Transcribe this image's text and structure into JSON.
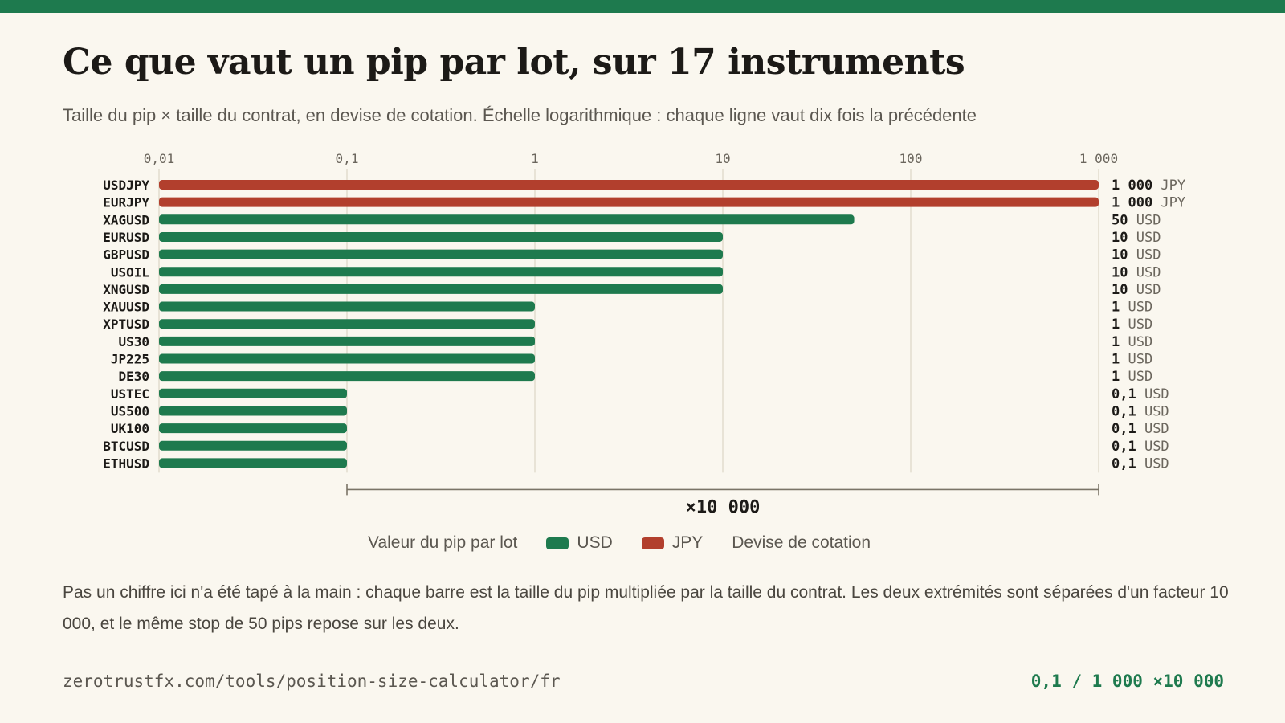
{
  "title": "Ce que vaut un pip par lot, sur 17 instruments",
  "subtitle": "Taille du pip × taille du contrat, en devise de cotation. Échelle logarithmique : chaque ligne vaut dix fois la précédente",
  "colors": {
    "USD": "#1e7a4e",
    "JPY": "#b23f2d",
    "accent_bar": "#1e7a4e"
  },
  "chart_data": {
    "type": "bar",
    "orientation": "horizontal",
    "x_scale": "log",
    "xlim": [
      0.01,
      1000
    ],
    "grid": true,
    "x_ticks": [
      0.01,
      0.1,
      1,
      10,
      100,
      1000
    ],
    "x_tick_labels": [
      "0,01",
      "0,1",
      "1",
      "10",
      "100",
      "1 000"
    ],
    "categories": [
      "USDJPY",
      "EURJPY",
      "XAGUSD",
      "EURUSD",
      "GBPUSD",
      "USOIL",
      "XNGUSD",
      "XAUUSD",
      "XPTUSD",
      "US30",
      "JP225",
      "DE30",
      "USTEC",
      "US500",
      "UK100",
      "BTCUSD",
      "ETHUSD"
    ],
    "values": [
      1000,
      1000,
      50,
      10,
      10,
      10,
      10,
      1,
      1,
      1,
      1,
      1,
      0.1,
      0.1,
      0.1,
      0.1,
      0.1
    ],
    "currencies": [
      "JPY",
      "JPY",
      "USD",
      "USD",
      "USD",
      "USD",
      "USD",
      "USD",
      "USD",
      "USD",
      "USD",
      "USD",
      "USD",
      "USD",
      "USD",
      "USD",
      "USD"
    ],
    "value_labels": [
      "1 000",
      "1 000",
      "50",
      "10",
      "10",
      "10",
      "10",
      "1",
      "1",
      "1",
      "1",
      "1",
      "0,1",
      "0,1",
      "0,1",
      "0,1",
      "0,1"
    ],
    "range_annotation": {
      "from": 0.1,
      "to": 1000,
      "label": "×10 000"
    },
    "legend": {
      "title": "Valeur du pip par lot",
      "items": [
        {
          "name": "USD",
          "color": "#1e7a4e"
        },
        {
          "name": "JPY",
          "color": "#b23f2d"
        }
      ],
      "suffix": "Devise de cotation"
    }
  },
  "note": "Pas un chiffre ici n'a été tapé à la main : chaque barre est la taille du pip multipliée par la taille du contrat. Les deux extrémités sont séparées d'un facteur 10 000, et le même stop de 50 pips repose sur les deux.",
  "footer": {
    "url": "zerotrustfx.com/tools/position-size-calculator/fr",
    "summary": "0,1 / 1 000 ×10 000"
  }
}
